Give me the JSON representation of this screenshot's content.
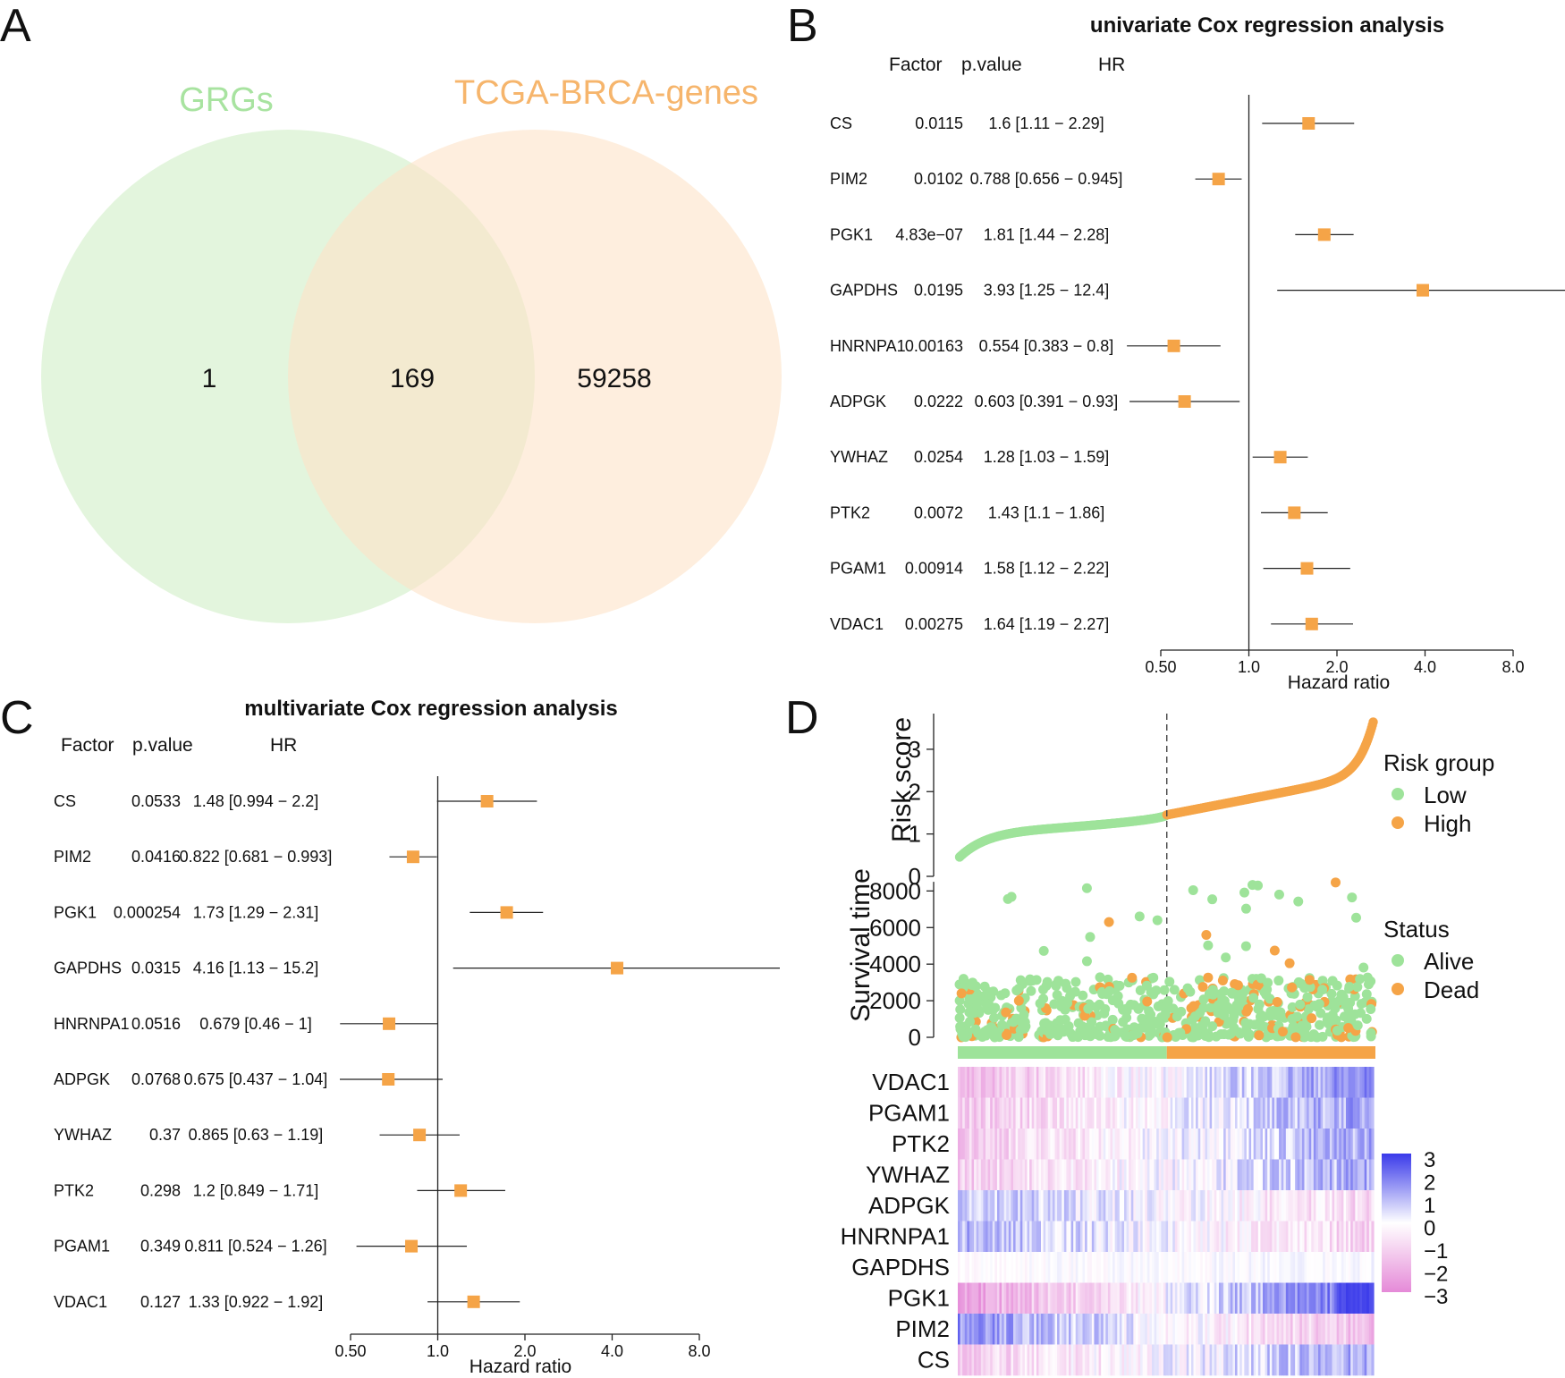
{
  "panels": {
    "a": "A",
    "b": "B",
    "c": "C",
    "d": "D"
  },
  "colors": {
    "green": "#9ee39a",
    "orange": "#f5a447",
    "venn_left": "#e3f5dd",
    "venn_right": "#fde3c8",
    "venn_left_label": "#a8e3a0",
    "venn_right_label": "#f6b56c",
    "heat_high": "#3a3aea",
    "heat_mid": "#ffffff",
    "heat_low": "#e58ad8"
  },
  "venn": {
    "left_label": "GRGs",
    "right_label": "TCGA-BRCA-genes",
    "left_only": "1",
    "overlap": "169",
    "right_only": "59258"
  },
  "headers": {
    "factor": "Factor",
    "pvalue": "p.value",
    "hr": "HR"
  },
  "chart_data": [
    {
      "type": "forest",
      "title": "univariate  Cox regression analysis",
      "xlabel": "Hazard ratio",
      "xscale": "log2",
      "xlim": [
        0.5,
        8.0
      ],
      "tick_labels": [
        "0.50",
        "1.0",
        "2.0",
        "4.0",
        "8.0"
      ],
      "ticks": [
        0.5,
        1.0,
        2.0,
        4.0,
        8.0
      ],
      "rows": [
        {
          "factor": "CS",
          "pvalue": "0.0115",
          "hr_text": "1.6 [1.11 − 2.29]",
          "hr": 1.6,
          "lo": 1.11,
          "hi": 2.29
        },
        {
          "factor": "PIM2",
          "pvalue": "0.0102",
          "hr_text": "0.788 [0.656 − 0.945]",
          "hr": 0.788,
          "lo": 0.656,
          "hi": 0.945
        },
        {
          "factor": "PGK1",
          "pvalue": "4.83e−07",
          "hr_text": "1.81 [1.44 − 2.28]",
          "hr": 1.81,
          "lo": 1.44,
          "hi": 2.28
        },
        {
          "factor": "GAPDHS",
          "pvalue": "0.0195",
          "hr_text": "3.93 [1.25 − 12.4]",
          "hr": 3.93,
          "lo": 1.25,
          "hi": 12.4
        },
        {
          "factor": "HNRNPA1",
          "pvalue": "0.00163",
          "hr_text": "0.554 [0.383 − 0.8]",
          "hr": 0.554,
          "lo": 0.383,
          "hi": 0.8
        },
        {
          "factor": "ADPGK",
          "pvalue": "0.0222",
          "hr_text": "0.603 [0.391 − 0.93]",
          "hr": 0.603,
          "lo": 0.391,
          "hi": 0.93
        },
        {
          "factor": "YWHAZ",
          "pvalue": "0.0254",
          "hr_text": "1.28 [1.03 − 1.59]",
          "hr": 1.28,
          "lo": 1.03,
          "hi": 1.59
        },
        {
          "factor": "PTK2",
          "pvalue": "0.0072",
          "hr_text": "1.43 [1.1 − 1.86]",
          "hr": 1.43,
          "lo": 1.1,
          "hi": 1.86
        },
        {
          "factor": "PGAM1",
          "pvalue": "0.00914",
          "hr_text": "1.58 [1.12 − 2.22]",
          "hr": 1.58,
          "lo": 1.12,
          "hi": 2.22
        },
        {
          "factor": "VDAC1",
          "pvalue": "0.00275",
          "hr_text": "1.64 [1.19 − 2.27]",
          "hr": 1.64,
          "lo": 1.19,
          "hi": 2.27
        }
      ]
    },
    {
      "type": "forest",
      "title": "multivariate Cox regression analysis",
      "xlabel": "Hazard ratio",
      "xscale": "log2",
      "xlim": [
        0.5,
        8.0
      ],
      "tick_labels": [
        "0.50",
        "1.0",
        "2.0",
        "4.0",
        "8.0"
      ],
      "ticks": [
        0.5,
        1.0,
        2.0,
        4.0,
        8.0
      ],
      "rows": [
        {
          "factor": "CS",
          "pvalue": "0.0533",
          "hr_text": "1.48 [0.994 − 2.2]",
          "hr": 1.48,
          "lo": 0.994,
          "hi": 2.2
        },
        {
          "factor": "PIM2",
          "pvalue": "0.0416",
          "hr_text": "0.822 [0.681 − 0.993]",
          "hr": 0.822,
          "lo": 0.681,
          "hi": 0.993
        },
        {
          "factor": "PGK1",
          "pvalue": "0.000254",
          "hr_text": "1.73 [1.29 − 2.31]",
          "hr": 1.73,
          "lo": 1.29,
          "hi": 2.31
        },
        {
          "factor": "GAPDHS",
          "pvalue": "0.0315",
          "hr_text": "4.16 [1.13 − 15.2]",
          "hr": 4.16,
          "lo": 1.13,
          "hi": 15.2
        },
        {
          "factor": "HNRNPA1",
          "pvalue": "0.0516",
          "hr_text": "0.679 [0.46 − 1]",
          "hr": 0.679,
          "lo": 0.46,
          "hi": 1.0
        },
        {
          "factor": "ADPGK",
          "pvalue": "0.0768",
          "hr_text": "0.675 [0.437 − 1.04]",
          "hr": 0.675,
          "lo": 0.437,
          "hi": 1.04
        },
        {
          "factor": "YWHAZ",
          "pvalue": "0.37",
          "hr_text": "0.865 [0.63 − 1.19]",
          "hr": 0.865,
          "lo": 0.63,
          "hi": 1.19
        },
        {
          "factor": "PTK2",
          "pvalue": "0.298",
          "hr_text": "1.2 [0.849 − 1.71]",
          "hr": 1.2,
          "lo": 0.849,
          "hi": 1.71
        },
        {
          "factor": "PGAM1",
          "pvalue": "0.349",
          "hr_text": "0.811 [0.524 − 1.26]",
          "hr": 0.811,
          "lo": 0.524,
          "hi": 1.26
        },
        {
          "factor": "VDAC1",
          "pvalue": "0.127",
          "hr_text": "1.33 [0.922 − 1.92]",
          "hr": 1.33,
          "lo": 0.922,
          "hi": 1.92
        }
      ]
    },
    {
      "type": "scatter",
      "name": "risk-score-curve",
      "ylabel": "Risk score",
      "ylim": [
        0,
        3.8
      ],
      "yticks": [
        0,
        1,
        2,
        3
      ],
      "n_patients": 1000,
      "cutoff_index": 500,
      "cutoff_score": 1.45,
      "legend_title": "Risk group",
      "legend": [
        "Low",
        "High"
      ]
    },
    {
      "type": "scatter",
      "name": "survival-time",
      "ylabel": "Survival time",
      "ylim": [
        0,
        8800
      ],
      "yticks": [
        0,
        2000,
        4000,
        6000,
        8000
      ],
      "legend_title": "Status",
      "legend": [
        "Alive",
        "Dead"
      ]
    },
    {
      "type": "heatmap",
      "name": "gene-expression",
      "genes": [
        "VDAC1",
        "PGAM1",
        "PTK2",
        "YWHAZ",
        "ADPGK",
        "HNRNPA1",
        "GAPDHS",
        "PGK1",
        "PIM2",
        "CS"
      ],
      "colorbar_ticks": [
        "3",
        "2",
        "1",
        "0",
        "−1",
        "−2",
        "−3"
      ],
      "colorbar_range": [
        -3,
        3
      ]
    }
  ]
}
